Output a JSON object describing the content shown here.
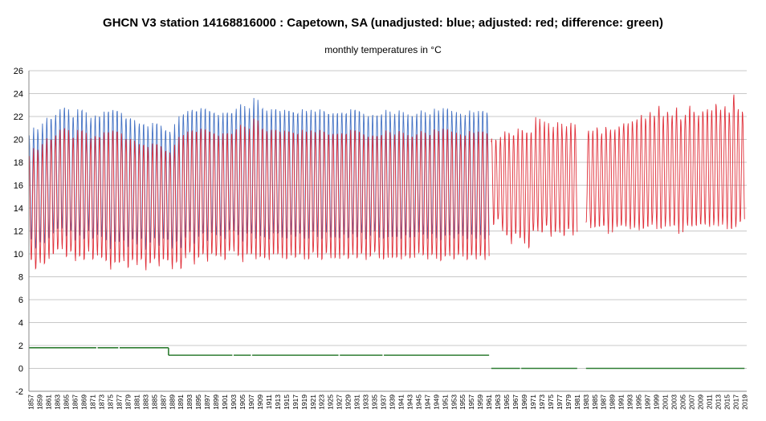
{
  "chart_data": {
    "type": "line",
    "title": "GHCN V3 station 14168816000 : Capetown, SA (unadjusted: blue; adjusted: red; difference: green)",
    "subtitle": "monthly temperatures in °C",
    "xlabel": "",
    "ylabel": "",
    "xlim": [
      1857,
      2019
    ],
    "ylim": [
      -2,
      26
    ],
    "yticks": [
      -2,
      0,
      2,
      4,
      6,
      8,
      10,
      12,
      14,
      16,
      18,
      20,
      22,
      24,
      26
    ],
    "xticks": [
      1857,
      1859,
      1861,
      1863,
      1865,
      1867,
      1869,
      1871,
      1873,
      1875,
      1877,
      1879,
      1881,
      1883,
      1885,
      1887,
      1889,
      1891,
      1893,
      1895,
      1897,
      1899,
      1901,
      1903,
      1905,
      1907,
      1909,
      1911,
      1913,
      1915,
      1917,
      1919,
      1921,
      1923,
      1925,
      1927,
      1929,
      1931,
      1933,
      1935,
      1937,
      1939,
      1941,
      1943,
      1945,
      1947,
      1949,
      1951,
      1953,
      1955,
      1957,
      1959,
      1961,
      1963,
      1965,
      1967,
      1969,
      1971,
      1973,
      1975,
      1977,
      1979,
      1981,
      1983,
      1985,
      1987,
      1989,
      1991,
      1993,
      1995,
      1997,
      1999,
      2001,
      2003,
      2005,
      2007,
      2009,
      2011,
      2013,
      2015,
      2017,
      2019
    ],
    "grid": true,
    "legend": "none",
    "colors": {
      "unadjusted": "#4472c4",
      "adjusted": "#e0303a",
      "difference": "#2e7d32",
      "grid": "#c8c8c8",
      "axis": "#888888"
    },
    "series": [
      {
        "name": "unadjusted",
        "color": "#4472c4",
        "segments": [
          {
            "start": 1857,
            "end": 1961.5,
            "annual_max": [
              20.5,
              21,
              20.8,
              21.5,
              21.8,
              22,
              22.2,
              22.5,
              23,
              22,
              22.3,
              22.8,
              22.5,
              21.8,
              22,
              22,
              22.2,
              22.5,
              22.3,
              22.8,
              22.5,
              22.2,
              22,
              21.8,
              21.5,
              21.5,
              21.2,
              21,
              21.5,
              21.2,
              21,
              20.8,
              20.7,
              21.5,
              22,
              22.5,
              22.6,
              22.5,
              22.7,
              22.8,
              22.5,
              22.6,
              22.3,
              22.2,
              22.5,
              22.3,
              22.6,
              22.8,
              23,
              22.5,
              22.8,
              23.5,
              23,
              22.7,
              22.5,
              22.8,
              22.6,
              22.5,
              22.7,
              22.4,
              22.6,
              22.3,
              22.5,
              22.4,
              22.6,
              22.5,
              22.8,
              22.3,
              22.5,
              22.4,
              22.2,
              22.6,
              22.3,
              22.5,
              22.8,
              22.4,
              22.3,
              22.2,
              22.1,
              22.4,
              22.3,
              22.5,
              22.2,
              22.3,
              22.4,
              22.1,
              22.2,
              22.3,
              22.4,
              22.5,
              22.2,
              22.3,
              22.6,
              22.4,
              22.8,
              22.5,
              22.3,
              22.4,
              22.2,
              22.3,
              22.5,
              22.2,
              22.6,
              22.4,
              22.3
            ],
            "annual_min": [
              11.2,
              10.2,
              11,
              10.8,
              11.5,
              11.8,
              12,
              12.3,
              11.5,
              11.8,
              11.2,
              11.5,
              11,
              12,
              11.2,
              11.8,
              11.5,
              11,
              10.5,
              11,
              10.8,
              11.2,
              10.5,
              11,
              10.8,
              11.2,
              10.5,
              11,
              11.2,
              10.8,
              11.3,
              11,
              10.5,
              11,
              10.2,
              11.4,
              11.8,
              11,
              11.5,
              11.6,
              11.2,
              11.8,
              11.4,
              11.6,
              11.2,
              11.8,
              12,
              11.5,
              11.2,
              11.8,
              11.6,
              11.4,
              11.5,
              11.2,
              11.3,
              11.7,
              11.5,
              11.4,
              11.2,
              11.8,
              11.5,
              11.6,
              11.4,
              11.3,
              11.7,
              11.5,
              11.2,
              11.6,
              11.4,
              11.3,
              11.5,
              11.7,
              11.2,
              11.8,
              11.4,
              11.6,
              11.3,
              11.5,
              11.7,
              11.4,
              11.2,
              11.6,
              11.5,
              11.3,
              11.4,
              11.6,
              11.2,
              11.5,
              11.8,
              11.4,
              11.3,
              11.6,
              11.5,
              11.2,
              11.4,
              11.7,
              11.3,
              11.5,
              11.6,
              11.2,
              11.4,
              11.3,
              11.5,
              11.4,
              11.6
            ]
          }
        ]
      },
      {
        "name": "adjusted",
        "color": "#e0303a",
        "segments": [
          {
            "start": 1857,
            "end": 1961.5,
            "offset": -1.8
          },
          {
            "start": 1962,
            "end": 1981.5,
            "annual_max": [
              20.2,
              19.8,
              20.5,
              20.8,
              20.3,
              20.6,
              21,
              20.5,
              20.8,
              20.6,
              22.3,
              21.3,
              21.5,
              21,
              21.2,
              21.4,
              21,
              21.2,
              21.3,
              21
            ],
            "annual_min": [
              12.5,
              12.8,
              12,
              11.5,
              11,
              11.8,
              11.2,
              11,
              10.5,
              11.8,
              12,
              11.8,
              12.2,
              11.5,
              11.8,
              12,
              11.6,
              12,
              11.7,
              11.9
            ]
          },
          {
            "start": 1983.5,
            "end": 2019.5,
            "annual_max": [
              20.8,
              20.6,
              21,
              20.5,
              21.2,
              21,
              20.8,
              21.2,
              21.5,
              21.3,
              21.6,
              21.8,
              22,
              21.8,
              22.4,
              22.2,
              23.1,
              22,
              22.5,
              22.2,
              22.7,
              21.8,
              22.2,
              22.8,
              22.4,
              22.1,
              22.6,
              22.8,
              22.5,
              23.2,
              22.7,
              22.8,
              22.4,
              24,
              22.5,
              22.4
            ],
            "annual_min": [
              12.8,
              12,
              12.5,
              12.3,
              12.2,
              11.8,
              12.4,
              12,
              12.6,
              12.2,
              12.3,
              12.5,
              11.8,
              12.4,
              12.3,
              12.6,
              12.2,
              12.1,
              12.5,
              12.4,
              12.3,
              11.9,
              12.6,
              12.2,
              12.5,
              12.4,
              12.3,
              12.6,
              12.2,
              12.5,
              12.4,
              12.7,
              12.3,
              12.1,
              12.4,
              13
            ]
          }
        ]
      },
      {
        "name": "difference",
        "color": "#2e7d32",
        "segments": [
          {
            "start": 1857,
            "end": 1872.3,
            "value": 1.8
          },
          {
            "start": 1872.6,
            "end": 1877.3,
            "value": 1.8
          },
          {
            "start": 1877.6,
            "end": 1888.7,
            "value": 1.8
          },
          {
            "start": 1888.7,
            "end": 1903.2,
            "value": 1.15
          },
          {
            "start": 1903.5,
            "end": 1907.4,
            "value": 1.15
          },
          {
            "start": 1907.7,
            "end": 1927.3,
            "value": 1.15
          },
          {
            "start": 1927.6,
            "end": 1937.3,
            "value": 1.15
          },
          {
            "start": 1937.6,
            "end": 1961.5,
            "value": 1.15
          },
          {
            "start": 1962,
            "end": 1968.5,
            "value": 0
          },
          {
            "start": 1968.8,
            "end": 1981.5,
            "value": 0
          },
          {
            "start": 1983.5,
            "end": 2019.5,
            "value": 0
          }
        ]
      }
    ]
  }
}
